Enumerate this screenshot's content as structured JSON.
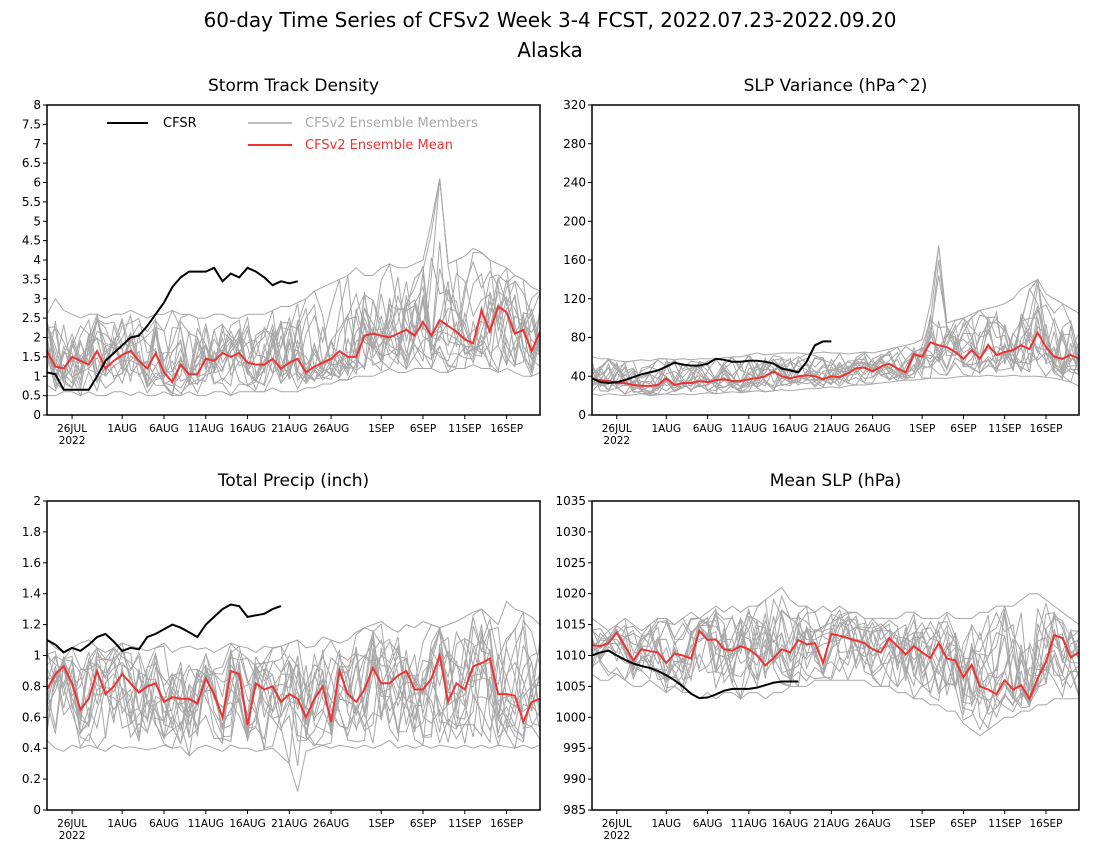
{
  "figure": {
    "title": "60-day Time Series of CFSv2 Week 3-4 FCST, 2022.07.23-2022.09.20",
    "subtitle": "Alaska"
  },
  "colors": {
    "cfsr": "#000000",
    "members": "#a8a8a8",
    "mean": "#ee3333"
  },
  "legend": {
    "cfsr": "CFSR",
    "members": "CFSv2 Ensemble Members",
    "mean": "CFSv2 Ensemble Mean",
    "placement": "top (Storm Track Density panel)"
  },
  "x_axis": {
    "start_date": "2022-07-23",
    "end_date": "2022-09-20",
    "tick_days": [
      3,
      9,
      14,
      19,
      24,
      29,
      34,
      40,
      45,
      50,
      55
    ],
    "tick_labels": [
      "26JUL",
      "1AUG",
      "6AUG",
      "11AUG",
      "16AUG",
      "21AUG",
      "26AUG",
      "1SEP",
      "6SEP",
      "11SEP",
      "16SEP"
    ],
    "year_label": "2022"
  },
  "chart_data": [
    {
      "type": "line",
      "title": "Storm Track Density",
      "ylim": [
        0,
        8
      ],
      "yticks": [
        0,
        0.5,
        1,
        1.5,
        2,
        2.5,
        3,
        3.5,
        4,
        4.5,
        5,
        5.5,
        6,
        6.5,
        7,
        7.5,
        8
      ],
      "ytick_labels": [
        "0",
        "0.5",
        "1",
        "1.5",
        "2",
        "2.5",
        "3",
        "3.5",
        "4",
        "4.5",
        "5",
        "5.5",
        "6",
        "6.5",
        "7",
        "7.5",
        "8"
      ],
      "member_spread": {
        "low": [
          0.5,
          0.5,
          0.6,
          0.6,
          0.5,
          0.6,
          0.5,
          0.5,
          0.6,
          0.6,
          0.5,
          0.6,
          0.5,
          0.5,
          0.6,
          0.5,
          0.5,
          0.6,
          0.5,
          0.5,
          0.6,
          0.6,
          0.5,
          0.6,
          0.6,
          0.6,
          0.6,
          0.7,
          0.6,
          0.6,
          0.6,
          0.7,
          0.7,
          0.8,
          0.8,
          0.9,
          0.9,
          1.0,
          1.0,
          1.0,
          1.1,
          1.2,
          1.1,
          1.1,
          1.2,
          1.2,
          1.2,
          1.1,
          1.1,
          1.2,
          1.2,
          1.3,
          1.2,
          1.2,
          1.1,
          1.2,
          1.1,
          1.0,
          1.0,
          1.1
        ],
        "high": [
          2.6,
          3.0,
          2.7,
          2.6,
          2.5,
          2.6,
          2.6,
          2.5,
          2.6,
          2.6,
          2.7,
          2.6,
          2.5,
          2.6,
          2.6,
          2.7,
          2.6,
          2.6,
          2.5,
          2.5,
          2.6,
          2.6,
          2.5,
          2.5,
          2.6,
          2.6,
          2.6,
          2.7,
          2.8,
          2.8,
          2.9,
          3.0,
          3.2,
          3.3,
          3.4,
          3.5,
          3.6,
          3.8,
          3.6,
          3.6,
          3.8,
          3.9,
          3.8,
          3.8,
          3.9,
          4.0,
          5.0,
          6.1,
          3.9,
          4.0,
          4.1,
          4.3,
          4.2,
          4.0,
          3.9,
          3.8,
          3.6,
          3.5,
          3.3,
          3.2
        ]
      },
      "series": [
        {
          "name": "CFSR",
          "values": [
            1.1,
            1.05,
            0.65,
            0.65,
            0.65,
            0.65,
            1.0,
            1.4,
            1.6,
            1.8,
            2.0,
            2.05,
            2.3,
            2.6,
            2.9,
            3.3,
            3.55,
            3.7,
            3.7,
            3.7,
            3.8,
            3.45,
            3.65,
            3.55,
            3.8,
            3.7,
            3.55,
            3.35,
            3.45,
            3.4,
            3.45
          ]
        },
        {
          "name": "CFSv2 Ensemble Mean",
          "values": [
            1.65,
            1.25,
            1.2,
            1.5,
            1.4,
            1.3,
            1.65,
            1.2,
            1.4,
            1.55,
            1.65,
            1.4,
            1.2,
            1.6,
            1.1,
            0.85,
            1.3,
            1.05,
            1.05,
            1.45,
            1.4,
            1.6,
            1.5,
            1.6,
            1.35,
            1.3,
            1.3,
            1.45,
            1.2,
            1.35,
            1.45,
            1.1,
            1.25,
            1.35,
            1.45,
            1.65,
            1.5,
            1.5,
            2.05,
            2.1,
            2.05,
            2.0,
            2.1,
            2.2,
            2.05,
            2.4,
            2.05,
            2.45,
            2.3,
            2.15,
            1.95,
            1.85,
            2.7,
            2.15,
            2.8,
            2.65,
            2.1,
            2.2,
            1.65,
            2.15
          ]
        }
      ]
    },
    {
      "type": "line",
      "title": "SLP Variance (hPa^2)",
      "ylim": [
        0,
        320
      ],
      "yticks": [
        0,
        40,
        80,
        120,
        160,
        200,
        240,
        280,
        320
      ],
      "ytick_labels": [
        "0",
        "40",
        "80",
        "120",
        "160",
        "200",
        "240",
        "280",
        "320"
      ],
      "member_spread": {
        "low": [
          22,
          20,
          22,
          21,
          20,
          21,
          22,
          20,
          21,
          22,
          21,
          22,
          21,
          22,
          23,
          22,
          23,
          24,
          23,
          24,
          25,
          24,
          25,
          26,
          25,
          26,
          27,
          27,
          28,
          29,
          28,
          30,
          31,
          31,
          32,
          33,
          34,
          35,
          36,
          36,
          37,
          38,
          38,
          38,
          39,
          40,
          40,
          40,
          41,
          40,
          40,
          41,
          40,
          40,
          40,
          39,
          38,
          36,
          34,
          30
        ],
        "high": [
          60,
          58,
          58,
          56,
          55,
          56,
          57,
          56,
          58,
          58,
          57,
          58,
          57,
          58,
          58,
          58,
          59,
          60,
          60,
          62,
          64,
          62,
          63,
          64,
          64,
          64,
          63,
          64,
          65,
          64,
          64,
          63,
          64,
          65,
          64,
          66,
          68,
          70,
          72,
          74,
          78,
          115,
          175,
          95,
          98,
          100,
          104,
          108,
          110,
          112,
          115,
          120,
          130,
          135,
          140,
          125,
          120,
          115,
          110,
          105
        ]
      },
      "series": [
        {
          "name": "CFSR",
          "values": [
            38,
            34,
            33,
            34,
            36,
            39,
            42,
            44,
            46,
            50,
            54,
            52,
            51,
            51,
            53,
            58,
            57,
            55,
            55,
            56,
            56,
            55,
            53,
            48,
            46,
            44,
            55,
            72,
            76,
            76
          ]
        },
        {
          "name": "CFSv2 Ensemble Mean",
          "values": [
            37,
            36,
            35,
            33,
            33,
            31,
            30,
            30,
            31,
            38,
            31,
            33,
            33,
            35,
            34,
            36,
            37,
            35,
            35,
            37,
            38,
            40,
            45,
            40,
            38,
            40,
            41,
            40,
            37,
            40,
            39,
            43,
            48,
            49,
            45,
            50,
            53,
            48,
            44,
            63,
            60,
            75,
            72,
            70,
            65,
            58,
            67,
            58,
            72,
            62,
            65,
            67,
            72,
            68,
            85,
            70,
            60,
            58,
            62,
            58
          ]
        }
      ]
    },
    {
      "type": "line",
      "title": "Total Precip (inch)",
      "ylim": [
        0,
        2
      ],
      "yticks": [
        0,
        0.2,
        0.4,
        0.6,
        0.8,
        1,
        1.2,
        1.4,
        1.6,
        1.8,
        2
      ],
      "ytick_labels": [
        "0",
        "0.2",
        "0.4",
        "0.6",
        "0.8",
        "1",
        "1.2",
        "1.4",
        "1.6",
        "1.8",
        "2"
      ],
      "member_spread": {
        "low": [
          0.45,
          0.4,
          0.38,
          0.42,
          0.4,
          0.42,
          0.4,
          0.38,
          0.42,
          0.4,
          0.41,
          0.4,
          0.39,
          0.4,
          0.42,
          0.4,
          0.41,
          0.35,
          0.4,
          0.42,
          0.4,
          0.38,
          0.42,
          0.4,
          0.4,
          0.38,
          0.39,
          0.4,
          0.35,
          0.3,
          0.12,
          0.38,
          0.4,
          0.42,
          0.4,
          0.42,
          0.41,
          0.4,
          0.42,
          0.4,
          0.42,
          0.45,
          0.4,
          0.42,
          0.4,
          0.42,
          0.4,
          0.42,
          0.41,
          0.4,
          0.42,
          0.4,
          0.42,
          0.4,
          0.42,
          0.41,
          0.4,
          0.42,
          0.4,
          0.42
        ],
        "high": [
          1.1,
          1.05,
          1.02,
          1.05,
          1.08,
          1.1,
          1.05,
          1.02,
          1.05,
          1.08,
          1.06,
          1.05,
          1.03,
          1.05,
          1.08,
          1.02,
          1.05,
          1.06,
          1.04,
          1.05,
          1.02,
          1.05,
          1.08,
          1.06,
          1.05,
          1.02,
          1.06,
          1.05,
          1.06,
          1.08,
          1.1,
          1.05,
          1.06,
          1.12,
          1.1,
          1.08,
          1.1,
          1.15,
          1.18,
          1.2,
          1.22,
          1.18,
          1.15,
          1.2,
          1.18,
          1.22,
          1.2,
          1.18,
          1.2,
          1.22,
          1.25,
          1.28,
          1.3,
          1.25,
          1.2,
          1.35,
          1.3,
          1.28,
          1.25,
          1.2
        ]
      },
      "series": [
        {
          "name": "CFSR",
          "values": [
            1.1,
            1.07,
            1.02,
            1.05,
            1.03,
            1.07,
            1.12,
            1.14,
            1.09,
            1.03,
            1.05,
            1.04,
            1.12,
            1.14,
            1.17,
            1.2,
            1.18,
            1.15,
            1.12,
            1.2,
            1.25,
            1.3,
            1.33,
            1.32,
            1.25,
            1.26,
            1.27,
            1.3,
            1.32
          ]
        },
        {
          "name": "CFSv2 Ensemble Mean",
          "values": [
            0.78,
            0.88,
            0.93,
            0.82,
            0.65,
            0.72,
            0.9,
            0.75,
            0.8,
            0.88,
            0.82,
            0.76,
            0.8,
            0.82,
            0.7,
            0.73,
            0.72,
            0.72,
            0.69,
            0.85,
            0.75,
            0.6,
            0.9,
            0.88,
            0.55,
            0.82,
            0.78,
            0.8,
            0.7,
            0.75,
            0.72,
            0.6,
            0.72,
            0.8,
            0.57,
            0.9,
            0.75,
            0.7,
            0.78,
            0.92,
            0.82,
            0.82,
            0.87,
            0.9,
            0.78,
            0.78,
            0.85,
            1.0,
            0.7,
            0.82,
            0.78,
            0.93,
            0.95,
            0.98,
            0.75,
            0.75,
            0.74,
            0.57,
            0.7,
            0.72
          ]
        }
      ]
    },
    {
      "type": "line",
      "title": "Mean SLP (hPa)",
      "ylim": [
        985,
        1035
      ],
      "yticks": [
        985,
        990,
        995,
        1000,
        1005,
        1010,
        1015,
        1020,
        1025,
        1030,
        1035
      ],
      "ytick_labels": [
        "985",
        "990",
        "995",
        "1000",
        "1005",
        "1010",
        "1015",
        "1020",
        "1025",
        "1030",
        "1035"
      ],
      "member_spread": {
        "low": [
          1007,
          1006,
          1006,
          1007,
          1006,
          1005,
          1005,
          1006,
          1005,
          1004,
          1005,
          1004,
          1004,
          1003,
          1004,
          1003,
          1004,
          1004,
          1003,
          1004,
          1004,
          1003,
          1004,
          1004,
          1005,
          1005,
          1005,
          1006,
          1006,
          1006,
          1006,
          1006,
          1006,
          1006,
          1005,
          1005,
          1005,
          1004,
          1004,
          1003,
          1003,
          1002,
          1002,
          1001,
          1001,
          999,
          998,
          997,
          998,
          999,
          1000,
          1000,
          1001,
          1001,
          1002,
          1002,
          1003,
          1003,
          1003,
          1003
        ],
        "high": [
          1016,
          1015,
          1014,
          1015,
          1016,
          1015,
          1014,
          1015,
          1016,
          1016,
          1015,
          1016,
          1017,
          1016,
          1017,
          1018,
          1017,
          1018,
          1017,
          1018,
          1018,
          1019,
          1020,
          1021,
          1019,
          1018,
          1018,
          1017,
          1018,
          1017,
          1018,
          1017,
          1017,
          1016,
          1016,
          1016,
          1016,
          1016,
          1017,
          1017,
          1016,
          1016,
          1016,
          1017,
          1016,
          1016,
          1016,
          1017,
          1017,
          1018,
          1018,
          1018,
          1019,
          1020,
          1020,
          1019,
          1018,
          1017,
          1016,
          1015
        ]
      },
      "series": [
        {
          "name": "CFSR",
          "values": [
            1010,
            1010.5,
            1010.8,
            1010,
            1009.3,
            1008.7,
            1008.3,
            1008,
            1007.5,
            1006.8,
            1006,
            1005,
            1003.8,
            1003.1,
            1003.2,
            1003.7,
            1004.3,
            1004.6,
            1004.6,
            1004.6,
            1004.8,
            1005.2,
            1005.6,
            1005.8,
            1005.8,
            1005.8
          ]
        },
        {
          "name": "CFSv2 Ensemble Mean",
          "values": [
            1011.7,
            1011.5,
            1012,
            1013.7,
            1011.5,
            1009.2,
            1011,
            1010.7,
            1010.5,
            1008.8,
            1010.3,
            1010,
            1009.5,
            1014,
            1012.5,
            1012.6,
            1011,
            1010.8,
            1011.5,
            1011,
            1010,
            1008.4,
            1009.6,
            1011,
            1010.5,
            1012.5,
            1011.8,
            1012,
            1008.8,
            1013.5,
            1013.2,
            1012.8,
            1012.4,
            1012,
            1011,
            1010.5,
            1012.8,
            1011.5,
            1010.2,
            1011.5,
            1010.5,
            1009.6,
            1012,
            1009.5,
            1009.2,
            1006.5,
            1008.5,
            1005,
            1004.5,
            1003.7,
            1006,
            1004.5,
            1005.2,
            1003,
            1006.3,
            1009,
            1013.3,
            1012.8,
            1009.7,
            1010.5
          ]
        }
      ]
    }
  ]
}
